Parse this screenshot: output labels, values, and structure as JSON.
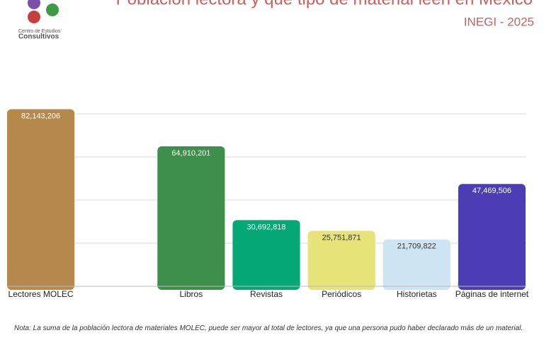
{
  "branding": {
    "line1": "Centro de Estudios",
    "line2": "Consultivos"
  },
  "chart_data": {
    "type": "bar",
    "title": "Población lectora y qué tipo de material leen en México",
    "subtitle": "INEGI - 2025",
    "categories": [
      "Lectores MOLEC",
      null,
      "Libros",
      "Revistas",
      "Periódicos",
      "Historietas",
      "Páginas de internet"
    ],
    "values": [
      82143206,
      null,
      64910201,
      30692818,
      25751871,
      21709822,
      47469506
    ],
    "value_labels": [
      "82,143,206",
      null,
      "64,910,201",
      "30,692,818",
      "25,751,871",
      "21,709,822",
      "47,469,506"
    ],
    "colors": [
      "#b5894b",
      null,
      "#3e8f4c",
      "#05a874",
      "#e6e379",
      "#cde5f2",
      "#4b3db3"
    ],
    "ylim": [
      0,
      85000000
    ],
    "yticks": [
      0,
      20000000,
      40000000,
      60000000,
      80000000
    ],
    "grid": true,
    "note": "Nota: La suma de la población lectora de materiales MOLEC, puede ser mayor al total de lectores, ya que una persona pudo haber declarado más de un material."
  }
}
